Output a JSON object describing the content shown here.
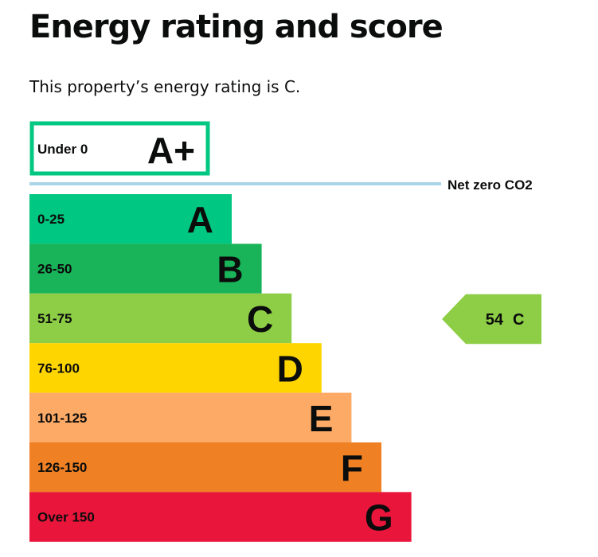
{
  "page": {
    "title": "Energy rating and score",
    "summary": "This property’s energy rating is C."
  },
  "chart_data": {
    "type": "bar",
    "bands": [
      {
        "range": "Under 0",
        "letter": "A+",
        "color": "#00c781",
        "outlined": true
      },
      {
        "range": "0-25",
        "letter": "A",
        "color": "#00c781"
      },
      {
        "range": "26-50",
        "letter": "B",
        "color": "#19b459"
      },
      {
        "range": "51-75",
        "letter": "C",
        "color": "#8dce46"
      },
      {
        "range": "76-100",
        "letter": "D",
        "color": "#ffd500"
      },
      {
        "range": "101-125",
        "letter": "E",
        "color": "#fcaa65"
      },
      {
        "range": "126-150",
        "letter": "F",
        "color": "#ef8023"
      },
      {
        "range": "Over 150",
        "letter": "G",
        "color": "#e9153b"
      }
    ],
    "net_zero_label": "Net zero CO2",
    "net_zero_line_color": "#a9d5e8",
    "current": {
      "score": "54",
      "letter": "C",
      "band_index": 3,
      "color": "#8dce46"
    }
  }
}
